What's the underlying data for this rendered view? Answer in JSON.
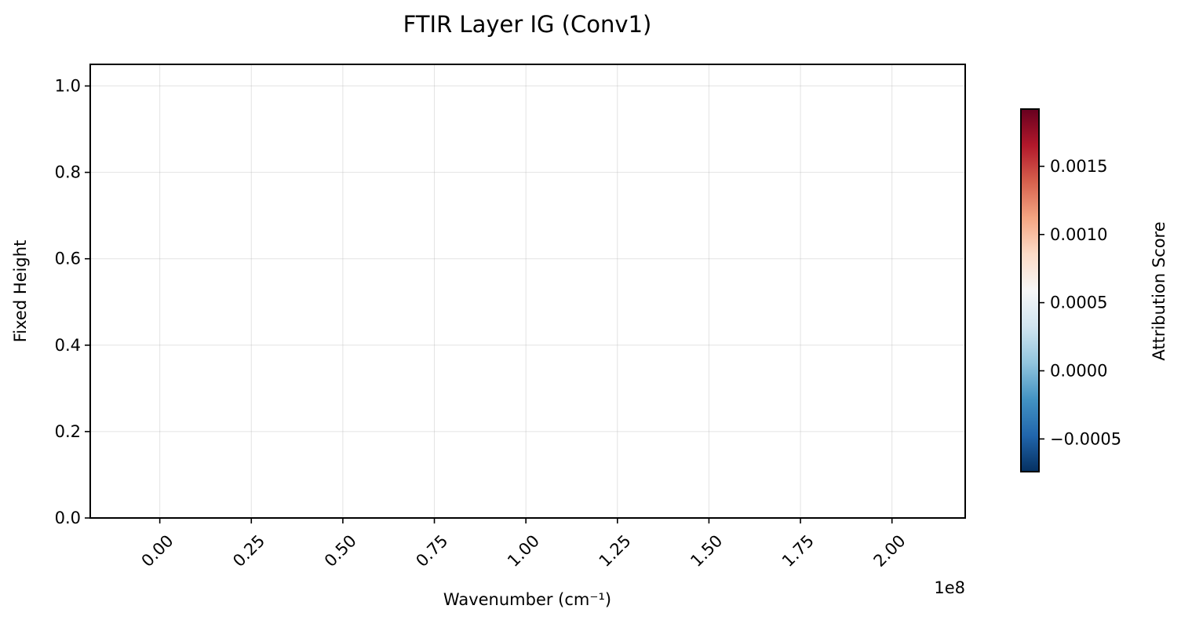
{
  "chart_data": {
    "type": "heatmap",
    "title": "FTIR Layer IG (Conv1)",
    "xlabel": "Wavenumber (cm⁻¹)",
    "ylabel": "Fixed Height",
    "x_offset_text": "1e8",
    "xlim": [
      -0.19,
      2.2
    ],
    "ylim": [
      0,
      1.05
    ],
    "x_ticks": [
      {
        "value": 0.0,
        "label": "0.00"
      },
      {
        "value": 0.25,
        "label": "0.25"
      },
      {
        "value": 0.5,
        "label": "0.50"
      },
      {
        "value": 0.75,
        "label": "0.75"
      },
      {
        "value": 1.0,
        "label": "1.00"
      },
      {
        "value": 1.25,
        "label": "1.25"
      },
      {
        "value": 1.5,
        "label": "1.50"
      },
      {
        "value": 1.75,
        "label": "1.75"
      },
      {
        "value": 2.0,
        "label": "2.00"
      }
    ],
    "y_ticks": [
      {
        "value": 0.0,
        "label": "0.0"
      },
      {
        "value": 0.2,
        "label": "0.2"
      },
      {
        "value": 0.4,
        "label": "0.4"
      },
      {
        "value": 0.6,
        "label": "0.6"
      },
      {
        "value": 0.8,
        "label": "0.8"
      },
      {
        "value": 1.0,
        "label": "1.0"
      }
    ],
    "grid": true,
    "colorbar": {
      "label": "Attribution Score",
      "colormap": "RdBu_r",
      "range": [
        -0.00074,
        0.00192
      ],
      "ticks": [
        {
          "value": -0.0005,
          "label": "−0.0005"
        },
        {
          "value": 0.0,
          "label": "0.0000"
        },
        {
          "value": 0.0005,
          "label": "0.0005"
        },
        {
          "value": 0.001,
          "label": "0.0010"
        },
        {
          "value": 0.0015,
          "label": "0.0015"
        }
      ],
      "colors": [
        "#053061",
        "#2166ac",
        "#4393c3",
        "#92c5de",
        "#d1e5f0",
        "#f7f7f7",
        "#fddbc7",
        "#f4a582",
        "#d6604d",
        "#b2182b",
        "#67001f"
      ]
    }
  }
}
